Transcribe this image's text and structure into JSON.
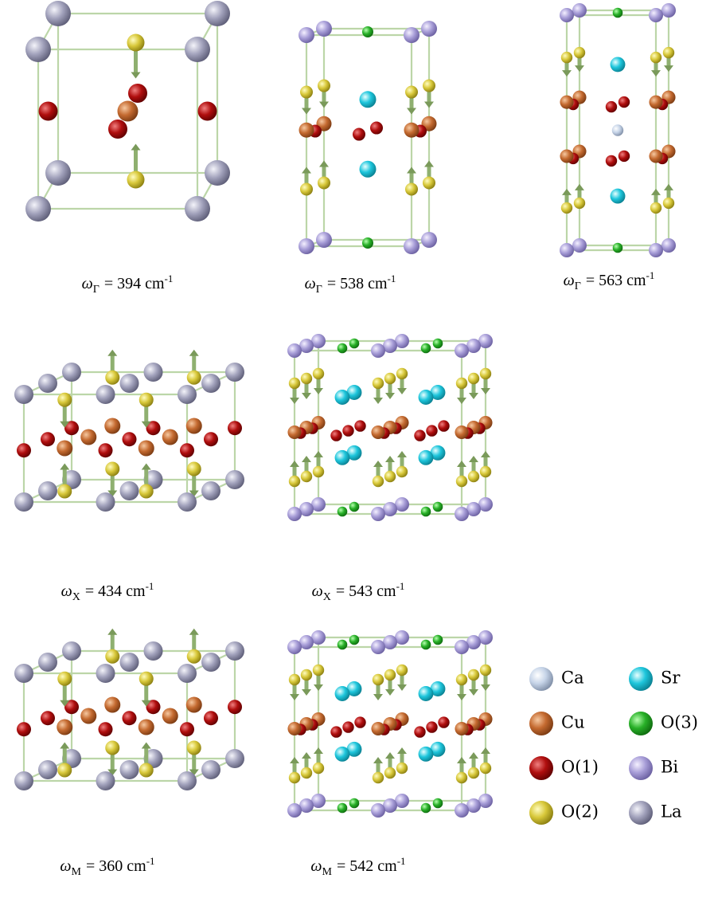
{
  "panels": [
    {
      "caption": {
        "symbol": "ω",
        "sub": "Γ",
        "text": "= 394 cm",
        "sup": "-1"
      }
    },
    {
      "caption": {
        "symbol": "ω",
        "sub": "Γ",
        "text": "= 538 cm",
        "sup": "-1"
      }
    },
    {
      "caption": {
        "symbol": "ω",
        "sub": "Γ",
        "text": "= 563 cm",
        "sup": "-1"
      }
    },
    {
      "caption": {
        "symbol": "ω",
        "sub": "X",
        "text": "= 434 cm",
        "sup": "-1"
      }
    },
    {
      "caption": {
        "symbol": "ω",
        "sub": "X",
        "text": "= 543 cm",
        "sup": "-1"
      }
    },
    {
      "caption": {
        "symbol": "ω",
        "sub": "M",
        "text": "= 360 cm",
        "sup": "-1"
      }
    },
    {
      "caption": {
        "symbol": "ω",
        "sub": "M",
        "text": "= 542 cm",
        "sup": "-1"
      }
    }
  ],
  "legend": {
    "items": [
      "Ca",
      "Sr",
      "Cu",
      "O(3)",
      "O(1)",
      "Bi",
      "O(2)",
      "La"
    ]
  }
}
